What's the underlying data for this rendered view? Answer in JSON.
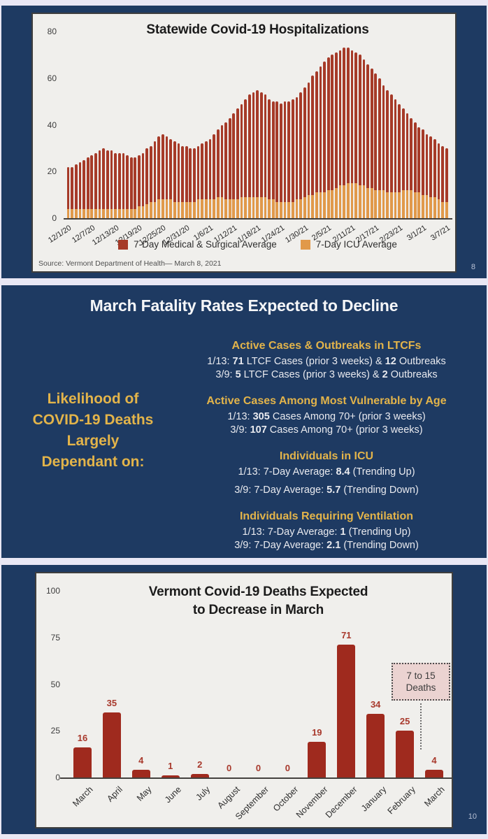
{
  "slide1": {
    "page_number": "8",
    "source": "Source: Vermont Department of Health— March 8, 2021"
  },
  "slide2": {
    "title": "March Fatality Rates Expected to Decline",
    "left_label_lines": [
      "Likelihood of",
      "COVID-19 Deaths",
      "Largely",
      "Dependant on:"
    ],
    "sections": [
      {
        "heading": "Active Cases & Outbreaks in LTCFs",
        "lines": [
          [
            {
              "t": "1/13: "
            },
            {
              "t": "71",
              "b": true
            },
            {
              "t": " LTCF Cases (prior 3 weeks) & "
            },
            {
              "t": "12",
              "b": true
            },
            {
              "t": " Outbreaks"
            }
          ],
          [
            {
              "t": "3/9: "
            },
            {
              "t": "5",
              "b": true
            },
            {
              "t": " LTCF Cases (prior 3 weeks) & "
            },
            {
              "t": "2",
              "b": true
            },
            {
              "t": " Outbreaks"
            }
          ]
        ]
      },
      {
        "heading": "Active Cases Among Most Vulnerable by Age",
        "lines": [
          [
            {
              "t": "1/13: "
            },
            {
              "t": "305",
              "b": true
            },
            {
              "t": " Cases Among 70+ (prior 3 weeks)"
            }
          ],
          [
            {
              "t": "3/9: "
            },
            {
              "t": "107",
              "b": true
            },
            {
              "t": " Cases Among 70+ (prior 3 weeks)"
            }
          ]
        ]
      },
      {
        "heading": "Individuals in ICU",
        "extra_line_gap": true,
        "lines": [
          [
            {
              "t": "1/13: 7-Day Average: "
            },
            {
              "t": "8.4",
              "b": true
            },
            {
              "t": " (Trending Up)"
            }
          ],
          [
            {
              "t": "3/9: 7-Day Average: "
            },
            {
              "t": "5.7",
              "b": true
            },
            {
              "t": " (Trending Down)"
            }
          ]
        ]
      },
      {
        "heading": "Individuals Requiring Ventilation",
        "lines": [
          [
            {
              "t": "1/13: 7-Day Average: "
            },
            {
              "t": "1",
              "b": true
            },
            {
              "t": " (Trending Up)"
            }
          ],
          [
            {
              "t": "3/9: 7-Day Average: "
            },
            {
              "t": "2.1",
              "b": true
            },
            {
              "t": " (Trending Down)"
            }
          ]
        ]
      }
    ]
  },
  "slide3": {
    "page_number": "10"
  },
  "chart_data": [
    {
      "id": "hospitalizations",
      "type": "bar",
      "stacked": true,
      "title": "Statewide Covid-19 Hospitalizations",
      "ylim": [
        0,
        80
      ],
      "yticks": [
        0,
        20,
        40,
        60,
        80
      ],
      "grid": false,
      "legend_position": "bottom",
      "x_tick_labels": [
        "12/1/20",
        "12/7/20",
        "12/13/20",
        "12/19/20",
        "12/25/20",
        "12/31/20",
        "1/6/21",
        "1/12/21",
        "1/18/21",
        "1/24/21",
        "1/30/21",
        "2/5/21",
        "2/11/21",
        "2/17/21",
        "2/23/21",
        "3/1/21",
        "3/7/21"
      ],
      "x_days_per_tick": 6,
      "series": [
        {
          "name": "7-Day Medical & Surgical Average",
          "color": "#a63a28",
          "values": [
            18,
            18,
            19,
            20,
            21,
            22,
            23,
            24,
            25,
            26,
            25,
            25,
            24,
            24,
            24,
            23,
            22,
            22,
            22,
            23,
            24,
            24,
            26,
            27,
            28,
            27,
            26,
            26,
            25,
            24,
            24,
            23,
            23,
            23,
            24,
            25,
            26,
            28,
            29,
            31,
            33,
            35,
            37,
            39,
            40,
            42,
            44,
            45,
            46,
            45,
            44,
            43,
            42,
            43,
            42,
            43,
            43,
            44,
            44,
            46,
            47,
            48,
            51,
            52,
            54,
            56,
            57,
            58,
            58,
            58,
            59,
            58,
            57,
            56,
            56,
            54,
            53,
            51,
            50,
            48,
            45,
            44,
            42,
            40,
            38,
            35,
            33,
            31,
            30,
            28,
            28,
            26,
            26,
            25,
            24,
            24,
            23
          ]
        },
        {
          "name": "7-Day ICU Average",
          "color": "#e1994a",
          "values": [
            4,
            4,
            4,
            4,
            4,
            4,
            4,
            4,
            4,
            4,
            4,
            4,
            4,
            4,
            4,
            4,
            4,
            4,
            5,
            5,
            6,
            7,
            7,
            8,
            8,
            8,
            8,
            7,
            7,
            7,
            7,
            7,
            7,
            8,
            8,
            8,
            8,
            8,
            9,
            9,
            8,
            8,
            8,
            8,
            9,
            9,
            9,
            9,
            9,
            9,
            9,
            8,
            8,
            7,
            7,
            7,
            7,
            7,
            8,
            8,
            9,
            10,
            10,
            11,
            11,
            11,
            12,
            12,
            13,
            14,
            14,
            15,
            15,
            15,
            14,
            14,
            13,
            13,
            12,
            12,
            12,
            11,
            11,
            11,
            11,
            12,
            12,
            12,
            11,
            11,
            10,
            10,
            9,
            9,
            8,
            7,
            7
          ]
        }
      ]
    },
    {
      "id": "deaths",
      "type": "bar",
      "title": "Vermont Covid-19 Deaths Expected to Decrease in March",
      "title_lines": [
        "Vermont Covid-19 Deaths Expected",
        "to Decrease in March"
      ],
      "categories": [
        "March",
        "April",
        "May",
        "June",
        "July",
        "August",
        "September",
        "October",
        "November",
        "December",
        "January",
        "February",
        "March"
      ],
      "values": [
        16,
        35,
        4,
        1,
        2,
        0,
        0,
        0,
        19,
        71,
        34,
        25,
        4
      ],
      "ylim": [
        0,
        100
      ],
      "yticks": [
        0,
        25,
        50,
        75,
        100
      ],
      "grid": false,
      "bar_color": "#9f2a1e",
      "annotation": {
        "line1": "7 to 15",
        "line2": "Deaths",
        "target_category_index": 12
      }
    }
  ]
}
